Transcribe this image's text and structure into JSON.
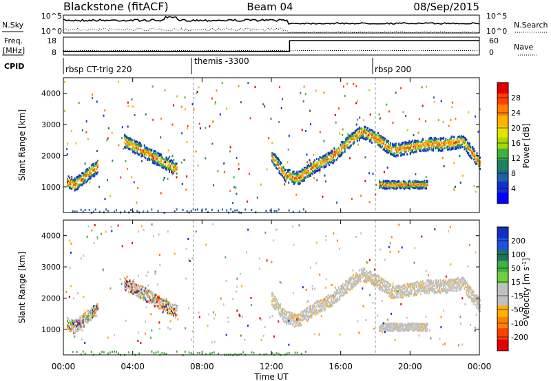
{
  "header": {
    "station": "Blackstone (fitACF)",
    "beam": "Beam 04",
    "date": "08/Sep/2015"
  },
  "nsky_panel": {
    "left_label": "N.Sky",
    "left_ticks": [
      "10^5",
      "10^0"
    ],
    "right_ticks": [
      "10^5",
      "10^0"
    ],
    "right_label": "N.Search"
  },
  "freq_panel": {
    "left_label_line1": "Freq.",
    "left_label_line2": "[MHz]",
    "left_ticks": [
      "18",
      "8"
    ],
    "right_ticks": [
      "60",
      "0"
    ],
    "right_label": "Nave",
    "freq_mhz_steps": [
      {
        "t0": 0,
        "t1": 13.05,
        "value": 10
      },
      {
        "t0": 13.05,
        "t1": 24,
        "value": 16
      }
    ],
    "nave_steps": [
      {
        "t0": 0,
        "t1": 24,
        "value": 15
      }
    ]
  },
  "cpid_panel": {
    "label": "CPID",
    "segments": [
      {
        "label": "rbsp CT-trig 220",
        "start_hr": 0
      },
      {
        "label": "themis -3300",
        "start_hr": 7.5
      },
      {
        "label": "rbsp 200",
        "start_hr": 18.0
      }
    ]
  },
  "power_panel": {
    "ylabel": "Slant Range [km]",
    "cbar_label": "Power [dB]",
    "cbar_ticks": [
      "28",
      "24",
      "20",
      "16",
      "12",
      "8",
      "4"
    ],
    "cbar_colors": [
      "#e00000",
      "#ff4000",
      "#ff8000",
      "#ffb000",
      "#e8e000",
      "#a8d800",
      "#40b040",
      "#208060",
      "#2060a0",
      "#1030d0",
      "#0000ff"
    ]
  },
  "velocity_panel": {
    "ylabel": "Slant Range [km]",
    "cbar_label": "Velocity [m s^-1]",
    "cbar_ticks": [
      "200",
      "100",
      "50",
      "15",
      "-15",
      "-50",
      "-100",
      "-200"
    ],
    "cbar_colors": [
      "#1030c0",
      "#2050e0",
      "#207060",
      "#40b040",
      "#70d040",
      "#c0c0c0",
      "#c0c0c0",
      "#ffb000",
      "#ff8000",
      "#ff4000",
      "#e00000"
    ]
  },
  "chart_data": {
    "type": "heatmap",
    "x_axis_label": "Time UT",
    "x_ticks": [
      "00:00",
      "04:00",
      "08:00",
      "12:00",
      "16:00",
      "20:00",
      "00:00"
    ],
    "x_range_hours": [
      0,
      24
    ],
    "y_ticks_km": [
      1000,
      2000,
      3000,
      4000
    ],
    "y_range_km": [
      180,
      4500
    ],
    "power_features": [
      {
        "name": "early band",
        "t": [
          0.2,
          0.6,
          1.0,
          1.5,
          2.0
        ],
        "range_km": [
          1200,
          1100,
          1250,
          1500,
          1700
        ]
      },
      {
        "name": "morning arc",
        "t": [
          3.5,
          4.5,
          5.5,
          6.5
        ],
        "range_km": [
          2500,
          2200,
          1900,
          1600
        ]
      },
      {
        "name": "main trace",
        "t": [
          12.0,
          12.8,
          13.5,
          14.5,
          15.5,
          16.5,
          17.2,
          18.0,
          19.0,
          20.0,
          21.0,
          22.0,
          23.0,
          24.0
        ],
        "range_km": [
          2000,
          1400,
          1300,
          1700,
          2000,
          2500,
          2800,
          2600,
          2200,
          2300,
          2400,
          2400,
          2500,
          1800
        ]
      },
      {
        "name": "late patch",
        "t": [
          18.2,
          19.0,
          20.0,
          21.0
        ],
        "range_km": [
          1100,
          1100,
          1100,
          1100
        ]
      }
    ]
  }
}
